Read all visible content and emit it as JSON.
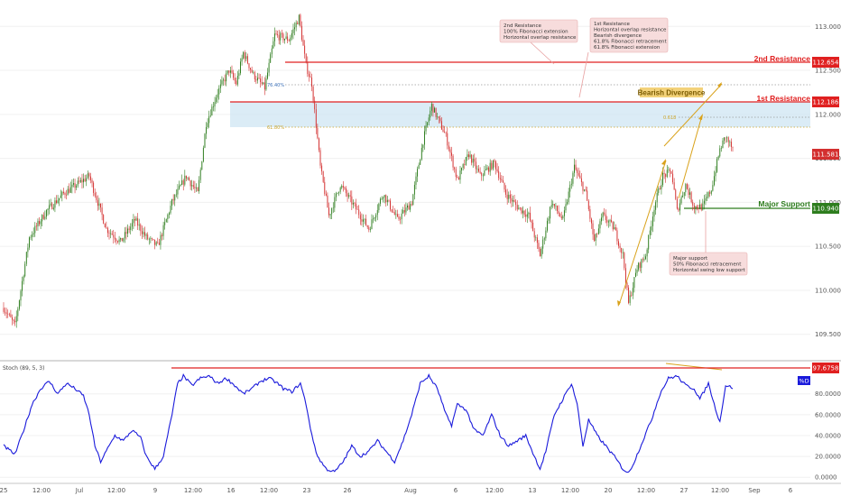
{
  "chart_data": [
    {
      "type": "candlestick",
      "xlabels": [
        "25",
        "12:00",
        "Jul",
        "12:00",
        "9",
        "12:00",
        "16",
        "12:00",
        "23",
        "26",
        "Aug",
        "6",
        "12:00",
        "13",
        "12:00",
        "20",
        "12:00",
        "27",
        "12:00",
        "Sep",
        "6"
      ],
      "ylim": [
        109.2,
        113.3
      ],
      "yticks": [
        "109.500",
        "110.000",
        "110.500",
        "111.000",
        "111.500",
        "112.000",
        "112.500",
        "113.000"
      ],
      "ytick_values": [
        109.5,
        110.0,
        110.5,
        111.0,
        111.5,
        112.0,
        112.5,
        113.0
      ],
      "anchors": [
        [
          0,
          109.8
        ],
        [
          8,
          109.6
        ],
        [
          18,
          110.6
        ],
        [
          30,
          110.9
        ],
        [
          42,
          111.1
        ],
        [
          60,
          111.3
        ],
        [
          72,
          110.7
        ],
        [
          82,
          110.55
        ],
        [
          92,
          110.8
        ],
        [
          100,
          110.6
        ],
        [
          108,
          110.5
        ],
        [
          118,
          111.0
        ],
        [
          128,
          111.3
        ],
        [
          136,
          111.1
        ],
        [
          142,
          111.9
        ],
        [
          150,
          112.25
        ],
        [
          158,
          112.5
        ],
        [
          163,
          112.35
        ],
        [
          168,
          112.7
        ],
        [
          175,
          112.45
        ],
        [
          183,
          112.3
        ],
        [
          190,
          112.9
        ],
        [
          200,
          112.85
        ],
        [
          207,
          113.1
        ],
        [
          212,
          112.55
        ],
        [
          216,
          112.35
        ],
        [
          222,
          111.4
        ],
        [
          228,
          110.85
        ],
        [
          236,
          111.2
        ],
        [
          246,
          110.95
        ],
        [
          256,
          110.7
        ],
        [
          266,
          111.1
        ],
        [
          276,
          110.8
        ],
        [
          286,
          111.0
        ],
        [
          294,
          111.7
        ],
        [
          300,
          112.1
        ],
        [
          310,
          111.75
        ],
        [
          318,
          111.25
        ],
        [
          326,
          111.55
        ],
        [
          334,
          111.3
        ],
        [
          344,
          111.45
        ],
        [
          352,
          111.1
        ],
        [
          360,
          110.95
        ],
        [
          368,
          110.85
        ],
        [
          376,
          110.4
        ],
        [
          384,
          111.0
        ],
        [
          392,
          110.8
        ],
        [
          400,
          111.4
        ],
        [
          408,
          111.1
        ],
        [
          414,
          110.55
        ],
        [
          420,
          110.85
        ],
        [
          428,
          110.7
        ],
        [
          434,
          110.4
        ],
        [
          438,
          109.85
        ],
        [
          444,
          110.25
        ],
        [
          450,
          110.4
        ],
        [
          456,
          110.95
        ],
        [
          462,
          111.3
        ],
        [
          468,
          111.35
        ],
        [
          472,
          110.9
        ],
        [
          478,
          111.2
        ],
        [
          484,
          110.95
        ],
        [
          490,
          110.95
        ],
        [
          496,
          111.15
        ],
        [
          502,
          111.6
        ],
        [
          506,
          111.75
        ],
        [
          511,
          111.6
        ]
      ],
      "levels": [
        {
          "name": "2nd Resistance",
          "value": 112.654,
          "color": "#e02020",
          "price_label": "112.654"
        },
        {
          "name": "1st Resistance",
          "value": 112.186,
          "color": "#e02020",
          "price_label": "112.186"
        },
        {
          "name": "Major Support",
          "value": 110.94,
          "color": "#2e7d1e",
          "price_label": "110.940"
        }
      ],
      "current_price": {
        "value": 111.581,
        "price_label": "111.581"
      },
      "fib_labels": [
        "76.40%",
        "61.80%",
        "0.618"
      ],
      "bearish_divergence_label": "Bearish Divergence",
      "annotations": [
        {
          "id": "second-resistance-note",
          "lines": [
            "2nd Resistance",
            "100% Fibonacci extension",
            "Horizontal overlap resistance"
          ]
        },
        {
          "id": "first-resistance-note",
          "lines": [
            "1st Resistance",
            "Horizontal overlap resistance",
            "Bearish divergence",
            "61.8% Fibonacci retracement",
            "61.8% Fibonacci extension"
          ]
        },
        {
          "id": "major-support-note",
          "lines": [
            "Major support",
            "50% Fibonacci retracement",
            "Horizontal swing low support"
          ]
        }
      ]
    },
    {
      "type": "line",
      "title": "Stoch (89, 5, 3)",
      "series_label": "%D",
      "ylim": [
        -5,
        110
      ],
      "yticks": [
        "0.0000",
        "20.0000",
        "40.0000",
        "60.0000",
        "80.0000"
      ],
      "ytick_values": [
        0,
        20,
        40,
        60,
        80
      ],
      "level": {
        "value": 97.6758,
        "price_label": "97.6758",
        "color": "#e02020"
      },
      "line_color": "#1a1adb",
      "anchors": [
        [
          0,
          30
        ],
        [
          8,
          22
        ],
        [
          14,
          45
        ],
        [
          20,
          70
        ],
        [
          26,
          85
        ],
        [
          32,
          92
        ],
        [
          38,
          80
        ],
        [
          44,
          90
        ],
        [
          50,
          85
        ],
        [
          56,
          78
        ],
        [
          60,
          60
        ],
        [
          64,
          30
        ],
        [
          68,
          15
        ],
        [
          72,
          25
        ],
        [
          78,
          40
        ],
        [
          84,
          35
        ],
        [
          90,
          45
        ],
        [
          96,
          38
        ],
        [
          100,
          20
        ],
        [
          106,
          8
        ],
        [
          112,
          20
        ],
        [
          118,
          60
        ],
        [
          122,
          90
        ],
        [
          126,
          97
        ],
        [
          132,
          88
        ],
        [
          138,
          95
        ],
        [
          144,
          97
        ],
        [
          150,
          90
        ],
        [
          156,
          95
        ],
        [
          162,
          88
        ],
        [
          168,
          80
        ],
        [
          174,
          85
        ],
        [
          180,
          92
        ],
        [
          186,
          95
        ],
        [
          192,
          90
        ],
        [
          196,
          85
        ],
        [
          202,
          82
        ],
        [
          208,
          90
        ],
        [
          212,
          70
        ],
        [
          216,
          40
        ],
        [
          220,
          20
        ],
        [
          226,
          8
        ],
        [
          232,
          5
        ],
        [
          238,
          15
        ],
        [
          244,
          30
        ],
        [
          250,
          20
        ],
        [
          256,
          25
        ],
        [
          262,
          35
        ],
        [
          268,
          25
        ],
        [
          274,
          15
        ],
        [
          280,
          35
        ],
        [
          286,
          60
        ],
        [
          292,
          90
        ],
        [
          298,
          97
        ],
        [
          304,
          85
        ],
        [
          310,
          60
        ],
        [
          314,
          50
        ],
        [
          318,
          70
        ],
        [
          324,
          65
        ],
        [
          330,
          45
        ],
        [
          336,
          40
        ],
        [
          342,
          60
        ],
        [
          348,
          40
        ],
        [
          354,
          30
        ],
        [
          360,
          35
        ],
        [
          366,
          40
        ],
        [
          372,
          20
        ],
        [
          376,
          8
        ],
        [
          380,
          25
        ],
        [
          386,
          60
        ],
        [
          392,
          75
        ],
        [
          398,
          90
        ],
        [
          402,
          70
        ],
        [
          406,
          30
        ],
        [
          410,
          55
        ],
        [
          416,
          40
        ],
        [
          422,
          30
        ],
        [
          428,
          20
        ],
        [
          434,
          8
        ],
        [
          438,
          4
        ],
        [
          442,
          15
        ],
        [
          448,
          35
        ],
        [
          454,
          55
        ],
        [
          460,
          80
        ],
        [
          466,
          95
        ],
        [
          472,
          97
        ],
        [
          478,
          88
        ],
        [
          484,
          85
        ],
        [
          488,
          75
        ],
        [
          494,
          90
        ],
        [
          498,
          70
        ],
        [
          502,
          53
        ],
        [
          506,
          88
        ],
        [
          511,
          86
        ]
      ]
    }
  ]
}
